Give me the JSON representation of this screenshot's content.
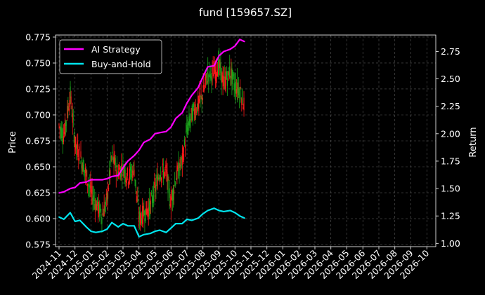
{
  "chart_data": {
    "type": "line",
    "title": "fund [159657.SZ]",
    "ylabel_left": "Price",
    "ylabel_right": "Return",
    "ylim_left": [
      0.573,
      0.777
    ],
    "ylim_right": [
      0.97,
      2.9
    ],
    "yticks_left": [
      "0.575",
      "0.600",
      "0.625",
      "0.650",
      "0.675",
      "0.700",
      "0.725",
      "0.750",
      "0.775"
    ],
    "yticks_right": [
      "1.00",
      "1.25",
      "1.50",
      "1.75",
      "2.00",
      "2.25",
      "2.50",
      "2.75"
    ],
    "xticks": [
      "2024-11",
      "2024-12",
      "2025-01",
      "2025-02",
      "2025-03",
      "2025-04",
      "2025-05",
      "2025-06",
      "2025-07",
      "2025-08",
      "2025-09",
      "2025-10",
      "2025-11",
      "2025-12",
      "2026-01",
      "2026-02",
      "2026-03",
      "2026-04",
      "2026-05",
      "2026-06",
      "2026-07",
      "2026-08",
      "2026-09",
      "2026-10"
    ],
    "grid": true,
    "legend_position": "top-left",
    "series": [
      {
        "name": "AI Strategy",
        "color": "#ff00ff",
        "axis": "right",
        "x": [
          0,
          0.3,
          0.7,
          1.0,
          1.3,
          1.7,
          2.0,
          2.3,
          2.7,
          3.0,
          3.3,
          3.7,
          4.0,
          4.3,
          4.7,
          5.0,
          5.3,
          5.7,
          6.0,
          6.3,
          6.7,
          7.0,
          7.3,
          7.7,
          8.0,
          8.3,
          8.7,
          9.0,
          9.3,
          9.7,
          10.0,
          10.3,
          10.7,
          11.0,
          11.3,
          11.6
        ],
        "values": [
          1.46,
          1.47,
          1.5,
          1.51,
          1.55,
          1.56,
          1.58,
          1.58,
          1.58,
          1.59,
          1.61,
          1.62,
          1.69,
          1.75,
          1.8,
          1.85,
          1.92,
          1.95,
          2.0,
          2.01,
          2.02,
          2.06,
          2.14,
          2.19,
          2.28,
          2.35,
          2.42,
          2.52,
          2.61,
          2.62,
          2.71,
          2.75,
          2.77,
          2.8,
          2.86,
          2.84
        ]
      },
      {
        "name": "Buy-and-Hold",
        "color": "#00e5ee",
        "axis": "right",
        "x": [
          0,
          0.3,
          0.7,
          1.0,
          1.3,
          1.7,
          2.0,
          2.3,
          2.7,
          3.0,
          3.3,
          3.7,
          4.0,
          4.3,
          4.7,
          5.0,
          5.3,
          5.7,
          6.0,
          6.3,
          6.7,
          7.0,
          7.3,
          7.7,
          8.0,
          8.3,
          8.7,
          9.0,
          9.3,
          9.7,
          10.0,
          10.3,
          10.7,
          11.0,
          11.3,
          11.6
        ],
        "values": [
          1.24,
          1.22,
          1.28,
          1.2,
          1.21,
          1.15,
          1.11,
          1.1,
          1.11,
          1.13,
          1.19,
          1.15,
          1.18,
          1.16,
          1.16,
          1.06,
          1.08,
          1.09,
          1.11,
          1.12,
          1.1,
          1.14,
          1.18,
          1.18,
          1.22,
          1.21,
          1.23,
          1.27,
          1.3,
          1.32,
          1.3,
          1.29,
          1.3,
          1.28,
          1.25,
          1.23
        ]
      },
      {
        "name": "Price",
        "type": "candlestick",
        "axis": "left",
        "up_color": "#ff1a1a",
        "down_color": "#1aa51a",
        "x": [
          0,
          0.3,
          0.7,
          1.0,
          1.3,
          1.7,
          2.0,
          2.3,
          2.7,
          3.0,
          3.3,
          3.7,
          4.0,
          4.3,
          4.7,
          5.0,
          5.3,
          5.7,
          6.0,
          6.3,
          6.7,
          7.0,
          7.3,
          7.7,
          8.0,
          8.3,
          8.7,
          9.0,
          9.3,
          9.7,
          10.0,
          10.3,
          10.7,
          11.0,
          11.3,
          11.6
        ],
        "values": [
          0.69,
          0.68,
          0.72,
          0.672,
          0.662,
          0.642,
          0.625,
          0.615,
          0.603,
          0.618,
          0.66,
          0.645,
          0.65,
          0.64,
          0.648,
          0.6,
          0.605,
          0.612,
          0.628,
          0.645,
          0.645,
          0.615,
          0.64,
          0.655,
          0.685,
          0.7,
          0.71,
          0.72,
          0.74,
          0.74,
          0.748,
          0.73,
          0.742,
          0.728,
          0.725,
          0.708
        ]
      }
    ]
  }
}
